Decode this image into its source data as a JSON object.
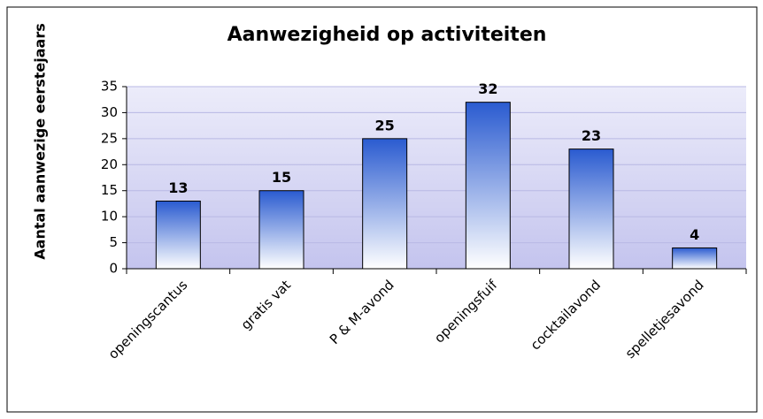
{
  "chart_data": {
    "type": "bar",
    "title": "Aanwezigheid op activiteiten",
    "y_label": "Aantal aanwezige eerstejaars",
    "categories": [
      "openingscantus",
      "gratis vat",
      "P & M-avond",
      "openingsfuif",
      "cocktailavond",
      "spelletjesavond"
    ],
    "values": [
      13,
      15,
      25,
      32,
      23,
      4
    ],
    "color": "#2a5bd0",
    "ylim": [
      0,
      35
    ],
    "yticks": [
      0,
      5,
      10,
      15,
      20,
      25,
      30,
      35
    ],
    "grid": true
  }
}
